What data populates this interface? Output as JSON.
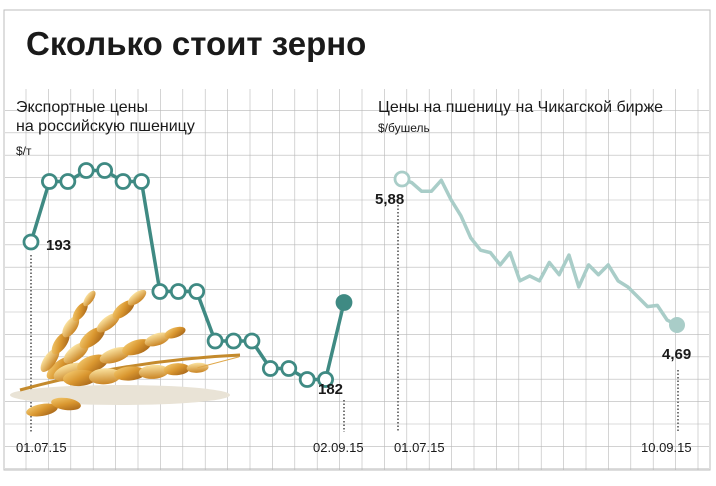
{
  "title": "Сколько стоит зерно",
  "colors": {
    "left_series": "#3f8a83",
    "right_series": "#a9cdc8",
    "grid": "#b8b8b8",
    "text": "#1a1a1a"
  },
  "chart_data": [
    {
      "type": "line",
      "title": "Экспортные цены на российскую пшеницу",
      "title_lines": [
        "Экспортные цены",
        "на российскую пшеницу"
      ],
      "unit": "$/т",
      "x_start_label": "01.07.15",
      "x_end_label": "02.09.15",
      "y": [
        193,
        204,
        204,
        206,
        206,
        204,
        204,
        184,
        184,
        184,
        175,
        175,
        175,
        170,
        170,
        168,
        168,
        182
      ],
      "first_value_label": "193",
      "last_value_label": "182",
      "grid": true
    },
    {
      "type": "line",
      "title": "Цены на пшеницу на Чикагской бирже",
      "unit": "$/бушель",
      "x_start_label": "01.07.15",
      "x_end_label": "10.09.15",
      "y": [
        5.88,
        5.85,
        5.78,
        5.78,
        5.87,
        5.71,
        5.58,
        5.4,
        5.3,
        5.28,
        5.18,
        5.28,
        5.05,
        5.09,
        5.05,
        5.2,
        5.1,
        5.26,
        5.0,
        5.18,
        5.1,
        5.18,
        5.05,
        5.0,
        4.92,
        4.84,
        4.85,
        4.73,
        4.69
      ],
      "first_value_label": "5,88",
      "last_value_label": "4,69",
      "grid": true
    }
  ]
}
